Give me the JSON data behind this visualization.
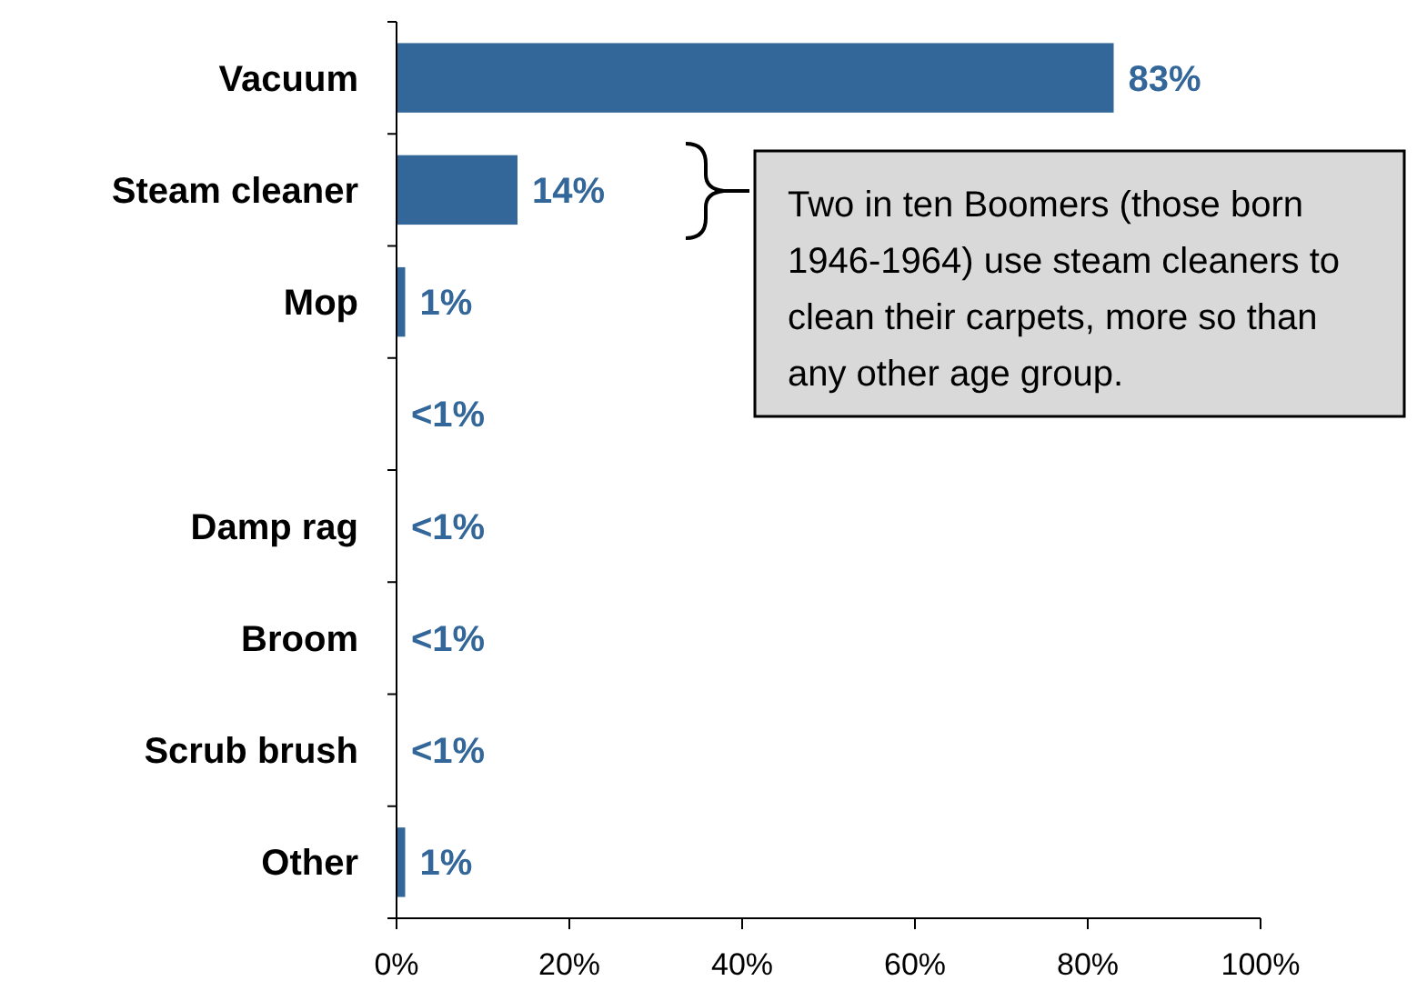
{
  "chart_data": {
    "type": "bar",
    "orientation": "horizontal",
    "categories": [
      "Vacuum",
      "Steam cleaner",
      "Mop",
      null,
      "Damp rag",
      "Broom",
      "Scrub brush",
      "Other"
    ],
    "values": [
      83,
      14,
      1,
      0,
      0,
      0,
      0,
      1
    ],
    "value_labels": [
      "83%",
      "14%",
      "1%",
      "<1%",
      "<1%",
      "<1%",
      "<1%",
      "1%"
    ],
    "color": "#336699",
    "xlim": [
      0,
      100
    ],
    "xticks": [
      {
        "value": 0,
        "label": "0%"
      },
      {
        "value": 20,
        "label": "20%"
      },
      {
        "value": 40,
        "label": "40%"
      },
      {
        "value": 60,
        "label": "60%"
      },
      {
        "value": 80,
        "label": "80%"
      },
      {
        "value": 100,
        "label": "100%"
      }
    ],
    "grid": false,
    "annotations": [
      "Two in ten Boomers (those born 1946-1964) use steam cleaners to clean their carpets, more so than any other age group."
    ]
  }
}
